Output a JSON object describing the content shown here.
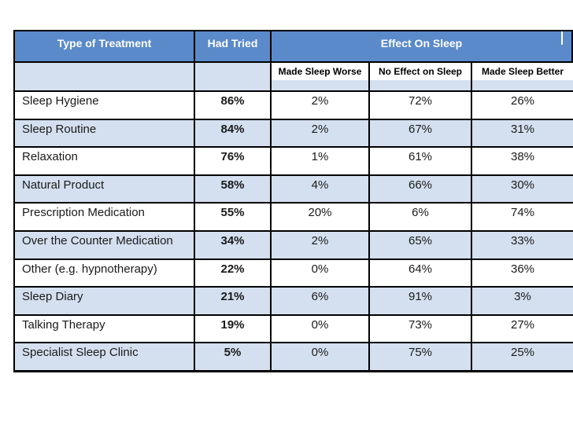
{
  "table": {
    "header": {
      "col_treatment": "Type of Treatment",
      "col_had_tried": "Had Tried",
      "col_effect": "Effect On Sleep",
      "sub_worse": "Made Sleep Worse",
      "sub_no_effect": "No Effect on Sleep",
      "sub_better": "Made Sleep Better"
    },
    "rows": [
      {
        "treatment": "Sleep Hygiene",
        "had_tried": "86%",
        "worse": "2%",
        "no_effect": "72%",
        "better": "26%"
      },
      {
        "treatment": "Sleep Routine",
        "had_tried": "84%",
        "worse": "2%",
        "no_effect": "67%",
        "better": "31%"
      },
      {
        "treatment": "Relaxation",
        "had_tried": "76%",
        "worse": "1%",
        "no_effect": "61%",
        "better": "38%"
      },
      {
        "treatment": "Natural Product",
        "had_tried": "58%",
        "worse": "4%",
        "no_effect": "66%",
        "better": "30%"
      },
      {
        "treatment": "Prescription Medication",
        "had_tried": "55%",
        "worse": "20%",
        "no_effect": "6%",
        "better": "74%"
      },
      {
        "treatment": "Over the Counter Medication",
        "had_tried": "34%",
        "worse": "2%",
        "no_effect": "65%",
        "better": "33%"
      },
      {
        "treatment": "Other (e.g. hypnotherapy)",
        "had_tried": "22%",
        "worse": "0%",
        "no_effect": "64%",
        "better": "36%"
      },
      {
        "treatment": "Sleep Diary",
        "had_tried": "21%",
        "worse": "6%",
        "no_effect": "91%",
        "better": "3%"
      },
      {
        "treatment": "Talking Therapy",
        "had_tried": "19%",
        "worse": "0%",
        "no_effect": "73%",
        "better": "27%"
      },
      {
        "treatment": "Specialist Sleep Clinic",
        "had_tried": "5%",
        "worse": "0%",
        "no_effect": "75%",
        "better": "25%"
      }
    ]
  },
  "colors": {
    "header_blue": "#5A8ACA",
    "row_alt_blue": "#D4E0F0",
    "border": "#000000",
    "header_text": "#FFFFFF"
  }
}
